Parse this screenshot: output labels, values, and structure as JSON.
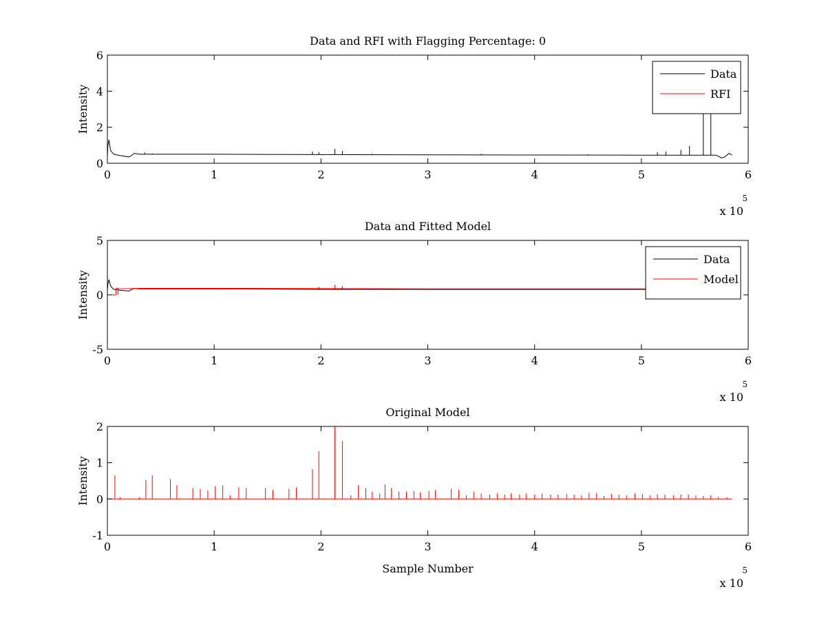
{
  "figure": {
    "background": "#ffffff"
  },
  "chart_data": [
    {
      "type": "line",
      "title": "Data and RFI with Flagging Percentage: 0",
      "xlabel": "",
      "ylabel": "Intensity",
      "xlim": [
        0,
        6
      ],
      "ylim": [
        0,
        6
      ],
      "xticks": [
        0,
        1,
        2,
        3,
        4,
        5,
        6
      ],
      "yticks": [
        0,
        2,
        4,
        6
      ],
      "x_multiplier": "x 10",
      "x_exponent": "5",
      "legend": {
        "position": "top-right",
        "entries": [
          {
            "name": "Data",
            "color": "#000000"
          },
          {
            "name": "RFI",
            "color": "#ff0000"
          }
        ]
      },
      "series": [
        {
          "name": "Data",
          "color": "#000000",
          "baseline": [
            [
              0,
              0.4
            ],
            [
              0.005,
              1.0
            ],
            [
              0.015,
              1.3
            ],
            [
              0.03,
              0.7
            ],
            [
              0.06,
              0.5
            ],
            [
              0.1,
              0.45
            ],
            [
              0.15,
              0.4
            ],
            [
              0.2,
              0.35
            ],
            [
              0.22,
              0.4
            ],
            [
              0.25,
              0.55
            ],
            [
              0.3,
              0.5
            ],
            [
              1.0,
              0.5
            ],
            [
              2.0,
              0.48
            ],
            [
              3.0,
              0.47
            ],
            [
              4.0,
              0.46
            ],
            [
              5.0,
              0.45
            ],
            [
              5.7,
              0.45
            ],
            [
              5.75,
              0.3
            ],
            [
              5.78,
              0.35
            ],
            [
              5.82,
              0.55
            ],
            [
              5.85,
              0.45
            ]
          ],
          "spikes": [
            [
              0.35,
              0.6
            ],
            [
              0.42,
              0.55
            ],
            [
              1.92,
              0.65
            ],
            [
              1.98,
              0.62
            ],
            [
              2.13,
              0.8
            ],
            [
              2.2,
              0.68
            ],
            [
              2.48,
              0.52
            ],
            [
              3.5,
              0.52
            ],
            [
              4.5,
              0.5
            ],
            [
              5.15,
              0.62
            ],
            [
              5.23,
              0.65
            ],
            [
              5.37,
              0.75
            ],
            [
              5.45,
              0.95
            ],
            [
              5.58,
              2.8
            ],
            [
              5.65,
              3.1
            ]
          ]
        },
        {
          "name": "RFI",
          "color": "#ff0000",
          "baseline": [],
          "spikes": []
        }
      ]
    },
    {
      "type": "line",
      "title": "Data and Fitted Model",
      "xlabel": "",
      "ylabel": "Intensity",
      "xlim": [
        0,
        6
      ],
      "ylim": [
        -5,
        5
      ],
      "xticks": [
        0,
        1,
        2,
        3,
        4,
        5,
        6
      ],
      "yticks": [
        -5,
        0,
        5
      ],
      "x_multiplier": "x 10",
      "x_exponent": "5",
      "legend": {
        "position": "top-right",
        "entries": [
          {
            "name": "Data",
            "color": "#000000"
          },
          {
            "name": "Model",
            "color": "#ff0000"
          }
        ]
      },
      "series": [
        {
          "name": "Data",
          "color": "#000000",
          "baseline": [
            [
              0,
              0.4
            ],
            [
              0.005,
              1.0
            ],
            [
              0.015,
              1.4
            ],
            [
              0.03,
              0.8
            ],
            [
              0.06,
              0.5
            ],
            [
              0.1,
              0.45
            ],
            [
              0.15,
              0.4
            ],
            [
              0.2,
              0.35
            ],
            [
              0.22,
              0.45
            ],
            [
              0.25,
              0.6
            ],
            [
              0.3,
              0.55
            ],
            [
              1.0,
              0.55
            ],
            [
              2.0,
              0.5
            ],
            [
              3.0,
              0.5
            ],
            [
              4.0,
              0.5
            ],
            [
              5.0,
              0.5
            ],
            [
              5.1,
              0.5
            ]
          ],
          "spikes": [
            [
              1.98,
              0.7
            ],
            [
              2.13,
              0.9
            ],
            [
              2.2,
              0.8
            ],
            [
              5.05,
              0.75
            ]
          ]
        },
        {
          "name": "Model",
          "color": "#ff0000",
          "baseline": [
            [
              0,
              0.0
            ],
            [
              0.08,
              0.0
            ],
            [
              0.08,
              0.6
            ],
            [
              0.1,
              0.6
            ],
            [
              0.1,
              0.0
            ],
            [
              0.1,
              0.55
            ],
            [
              0.3,
              0.6
            ],
            [
              1.0,
              0.6
            ],
            [
              2.0,
              0.58
            ],
            [
              3.0,
              0.55
            ],
            [
              4.0,
              0.55
            ],
            [
              5.0,
              0.55
            ],
            [
              5.1,
              0.55
            ]
          ],
          "spikes": [
            [
              2.13,
              0.85
            ],
            [
              2.2,
              0.75
            ]
          ]
        }
      ]
    },
    {
      "type": "line",
      "title": "Original Model",
      "xlabel": "Sample Number",
      "ylabel": "Intensity",
      "xlim": [
        0,
        6
      ],
      "ylim": [
        -1,
        2
      ],
      "xticks": [
        0,
        1,
        2,
        3,
        4,
        5,
        6
      ],
      "yticks": [
        -1,
        0,
        1,
        2
      ],
      "x_multiplier": "x 10",
      "x_exponent": "5",
      "legend": null,
      "series": [
        {
          "name": "",
          "color": "#ff0000",
          "baseline": [
            [
              0,
              0
            ],
            [
              5.85,
              0
            ]
          ],
          "spikes": [
            [
              0.07,
              0.65
            ],
            [
              0.12,
              0.05
            ],
            [
              0.3,
              0.05
            ],
            [
              0.36,
              0.52
            ],
            [
              0.42,
              0.65
            ],
            [
              0.59,
              0.55
            ],
            [
              0.65,
              0.38
            ],
            [
              0.8,
              0.3
            ],
            [
              0.87,
              0.28
            ],
            [
              0.94,
              0.24
            ],
            [
              1.01,
              0.35
            ],
            [
              1.08,
              0.37
            ],
            [
              1.15,
              0.1
            ],
            [
              1.23,
              0.32
            ],
            [
              1.3,
              0.3
            ],
            [
              1.48,
              0.3
            ],
            [
              1.55,
              0.25
            ],
            [
              1.7,
              0.28
            ],
            [
              1.77,
              0.32
            ],
            [
              1.92,
              0.82
            ],
            [
              1.98,
              1.32
            ],
            [
              2.13,
              2.0
            ],
            [
              2.2,
              1.6
            ],
            [
              2.28,
              0.1
            ],
            [
              2.35,
              0.38
            ],
            [
              2.42,
              0.3
            ],
            [
              2.48,
              0.2
            ],
            [
              2.55,
              0.15
            ],
            [
              2.6,
              0.4
            ],
            [
              2.66,
              0.3
            ],
            [
              2.73,
              0.2
            ],
            [
              2.8,
              0.2
            ],
            [
              2.87,
              0.22
            ],
            [
              2.93,
              0.18
            ],
            [
              3.01,
              0.22
            ],
            [
              3.07,
              0.25
            ],
            [
              3.22,
              0.28
            ],
            [
              3.29,
              0.25
            ],
            [
              3.36,
              0.1
            ],
            [
              3.43,
              0.2
            ],
            [
              3.5,
              0.15
            ],
            [
              3.58,
              0.12
            ],
            [
              3.65,
              0.15
            ],
            [
              3.72,
              0.12
            ],
            [
              3.78,
              0.15
            ],
            [
              3.86,
              0.12
            ],
            [
              3.92,
              0.15
            ],
            [
              4.0,
              0.12
            ],
            [
              4.07,
              0.15
            ],
            [
              4.15,
              0.12
            ],
            [
              4.22,
              0.12
            ],
            [
              4.3,
              0.14
            ],
            [
              4.37,
              0.12
            ],
            [
              4.44,
              0.1
            ],
            [
              4.51,
              0.17
            ],
            [
              4.58,
              0.16
            ],
            [
              4.65,
              0.08
            ],
            [
              4.72,
              0.14
            ],
            [
              4.79,
              0.12
            ],
            [
              4.86,
              0.1
            ],
            [
              4.94,
              0.15
            ],
            [
              5.01,
              0.14
            ],
            [
              5.08,
              0.1
            ],
            [
              5.15,
              0.13
            ],
            [
              5.22,
              0.12
            ],
            [
              5.3,
              0.1
            ],
            [
              5.37,
              0.12
            ],
            [
              5.44,
              0.12
            ],
            [
              5.51,
              0.1
            ],
            [
              5.58,
              0.08
            ],
            [
              5.65,
              0.1
            ],
            [
              5.72,
              0.06
            ],
            [
              5.8,
              0.05
            ]
          ]
        }
      ]
    }
  ]
}
